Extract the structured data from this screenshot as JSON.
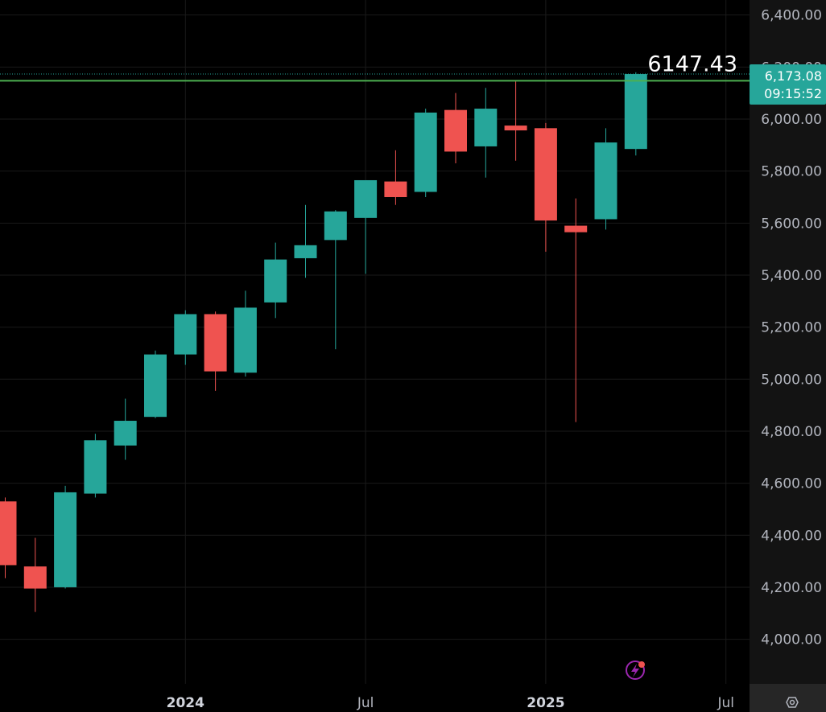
{
  "chart_data": {
    "type": "candlestick",
    "interval": "monthly",
    "colors": {
      "up": "#26a69a",
      "down": "#ef5350",
      "level_line": "#4caf50",
      "background": "#000000",
      "axis_panel": "#131313"
    },
    "candles": [
      {
        "date": "2023-07",
        "open": 4530,
        "high": 4545,
        "low": 4235,
        "close": 4285
      },
      {
        "date": "2023-08",
        "open": 4280,
        "high": 4390,
        "low": 4105,
        "close": 4195
      },
      {
        "date": "2023-09",
        "open": 4200,
        "high": 4590,
        "low": 4195,
        "close": 4565
      },
      {
        "date": "2023-10",
        "open": 4560,
        "high": 4790,
        "low": 4545,
        "close": 4765
      },
      {
        "date": "2023-11",
        "open": 4745,
        "high": 4925,
        "low": 4690,
        "close": 4840
      },
      {
        "date": "2023-12",
        "open": 4855,
        "high": 5110,
        "low": 4850,
        "close": 5095
      },
      {
        "date": "2024-01",
        "open": 5095,
        "high": 5265,
        "low": 5055,
        "close": 5250
      },
      {
        "date": "2024-02",
        "open": 5250,
        "high": 5260,
        "low": 4955,
        "close": 5030
      },
      {
        "date": "2024-03",
        "open": 5025,
        "high": 5340,
        "low": 5010,
        "close": 5275
      },
      {
        "date": "2024-04",
        "open": 5295,
        "high": 5525,
        "low": 5235,
        "close": 5460
      },
      {
        "date": "2024-05",
        "open": 5465,
        "high": 5670,
        "low": 5390,
        "close": 5515
      },
      {
        "date": "2024-06",
        "open": 5535,
        "high": 5650,
        "low": 5115,
        "close": 5645
      },
      {
        "date": "2024-07",
        "open": 5620,
        "high": 5760,
        "low": 5405,
        "close": 5765
      },
      {
        "date": "2024-08",
        "open": 5760,
        "high": 5880,
        "low": 5670,
        "close": 5700
      },
      {
        "date": "2024-09",
        "open": 5720,
        "high": 6040,
        "low": 5700,
        "close": 6025
      },
      {
        "date": "2024-10",
        "open": 6035,
        "high": 6100,
        "low": 5830,
        "close": 5875
      },
      {
        "date": "2024-11",
        "open": 5895,
        "high": 6120,
        "low": 5775,
        "close": 6040
      },
      {
        "date": "2024-12",
        "open": 5975,
        "high": 6150,
        "low": 5840,
        "close": 5960
      },
      {
        "date": "2025-01",
        "open": 5965,
        "high": 5985,
        "low": 5490,
        "close": 5610
      },
      {
        "date": "2025-02",
        "open": 5590,
        "high": 5695,
        "low": 4835,
        "close": 5565
      },
      {
        "date": "2025-03",
        "open": 5615,
        "high": 5965,
        "low": 5575,
        "close": 5910
      },
      {
        "date": "2025-04",
        "open": 5885,
        "high": 6180,
        "low": 5860,
        "close": 6173.08
      }
    ],
    "x_ticks": [
      {
        "label": "2024",
        "date": "2024-01",
        "bold": true
      },
      {
        "label": "Jul",
        "date": "2024-07",
        "bold": false
      },
      {
        "label": "2025",
        "date": "2025-01",
        "bold": true
      },
      {
        "label": "Jul",
        "date": "2025-07",
        "bold": false
      }
    ],
    "y_ticks": [
      "6,400.00",
      "6,200.00",
      "6,000.00",
      "5,800.00",
      "5,600.00",
      "5,400.00",
      "5,200.00",
      "5,000.00",
      "4,800.00",
      "4,600.00",
      "4,400.00",
      "4,200.00",
      "4,000.00"
    ],
    "y_tick_values": [
      6400,
      6200,
      6000,
      5800,
      5600,
      5400,
      5200,
      5000,
      4800,
      4600,
      4400,
      4200,
      4000
    ],
    "ylim": [
      3850,
      6460
    ],
    "horizontal_level": {
      "value": 6147.43,
      "label": "6147.43"
    },
    "last_price": {
      "value": 6173.08,
      "label": "6,173.08",
      "countdown": "09:15:52"
    },
    "grid": true
  },
  "icons": {
    "lightning_badge": "lightning-icon",
    "settings": "settings-icon"
  }
}
